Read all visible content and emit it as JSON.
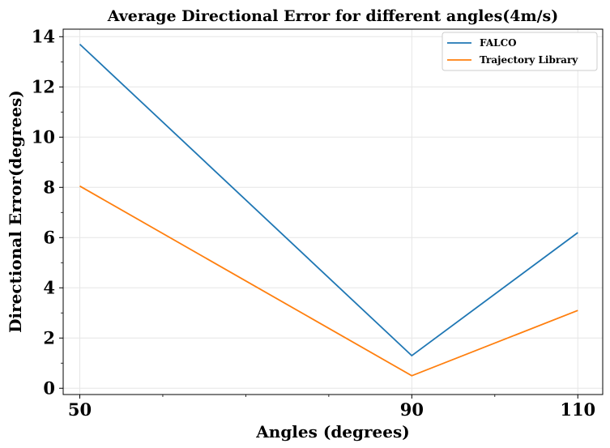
{
  "chart_data": {
    "type": "line",
    "title": "Average Directional Error for different angles(4m/s)",
    "xlabel": "Angles (degrees)",
    "ylabel": "Directional Error(degrees)",
    "x": [
      50,
      90,
      110
    ],
    "x_ticks": [
      "50",
      "90",
      "110"
    ],
    "y_ticks": [
      "0",
      "2",
      "4",
      "6",
      "8",
      "10",
      "12",
      "14"
    ],
    "xlim": [
      48,
      113
    ],
    "ylim": [
      -0.25,
      14.3
    ],
    "grid": true,
    "legend_position": "top-right",
    "series": [
      {
        "name": "FALCO",
        "color": "#1f77b4",
        "values": [
          13.7,
          1.3,
          6.2
        ]
      },
      {
        "name": "Trajectory Library",
        "color": "#ff7f0e",
        "values": [
          8.05,
          0.5,
          3.1
        ]
      }
    ]
  }
}
